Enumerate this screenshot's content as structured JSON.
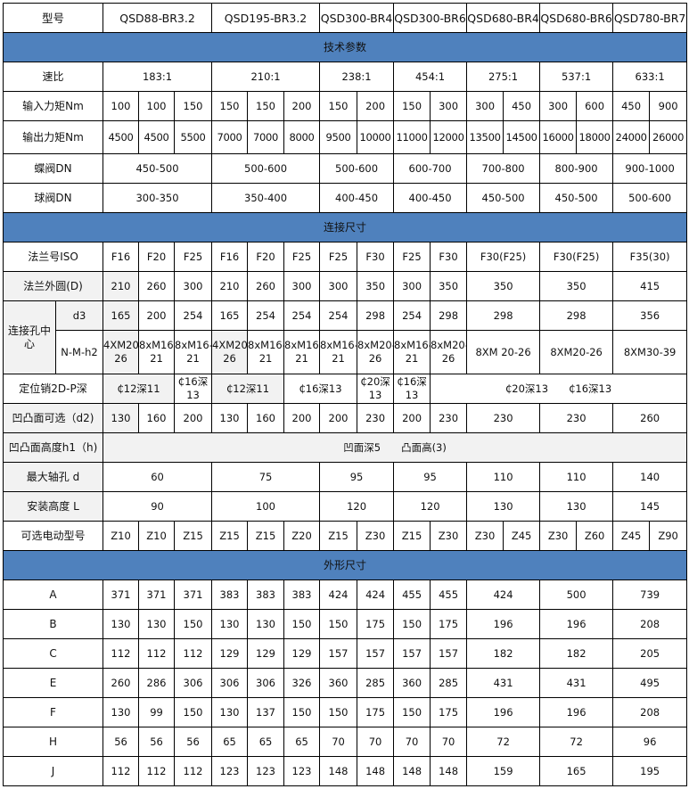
{
  "header": {
    "label": "型号",
    "models": [
      "QSD88-BR3.2",
      "QSD195-BR3.2",
      "QSD300-BR4",
      "QSD300-BR6",
      "QSD680-BR4",
      "QSD680-BR6",
      "QSD780-BR7"
    ]
  },
  "sections": {
    "tech": "技术参数",
    "connection": "连接尺寸",
    "outline": "外形尺寸"
  },
  "tech_rows": [
    {
      "label": "速比",
      "values": [
        "183:1",
        "210:1",
        "238:1",
        "454:1",
        "275:1",
        "537:1",
        "633:1"
      ]
    },
    {
      "label": "输入力矩Nm",
      "values": [
        "100",
        "100",
        "150",
        "150",
        "150",
        "200",
        "150",
        "200",
        "150",
        "300",
        "300",
        "450",
        "300",
        "600",
        "450",
        "900"
      ]
    },
    {
      "label": "输出力矩Nm",
      "values": [
        "4500",
        "4500",
        "5500",
        "7000",
        "7000",
        "8000",
        "9500",
        "10000",
        "11000",
        "12000",
        "13500",
        "14500",
        "16000",
        "18000",
        "24000",
        "26000"
      ]
    },
    {
      "label": "蝶阀DN",
      "values": [
        "450-500",
        "500-600",
        "500-600",
        "600-700",
        "700-800",
        "800-900",
        "900-1000"
      ]
    },
    {
      "label": "球阀DN",
      "values": [
        "300-350",
        "350-400",
        "400-450",
        "400-450",
        "450-500",
        "450-500",
        "500-600"
      ]
    }
  ],
  "connection_rows": {
    "flange_iso": {
      "label": "法兰号ISO",
      "values": [
        "F16",
        "F20",
        "F25",
        "F16",
        "F20",
        "F25",
        "F25",
        "F30",
        "F25",
        "F30",
        "F30(F25)",
        "F30(F25)",
        "F35(30)"
      ]
    },
    "flange_d": {
      "label": "法兰外圆(D)",
      "values": [
        "210",
        "260",
        "300",
        "210",
        "260",
        "300",
        "300",
        "350",
        "300",
        "350",
        "350",
        "350",
        "415"
      ]
    },
    "hole_center": {
      "label": "连接孔中心",
      "d3": {
        "label": "d3",
        "values": [
          "165",
          "200",
          "254",
          "165",
          "254",
          "254",
          "254",
          "298",
          "254",
          "298",
          "298",
          "298",
          "356"
        ]
      },
      "nmh2": {
        "label": "N-M-h2",
        "values": [
          "4XM20-26",
          "8xM16-21",
          "8xM16-21",
          "4XM20-26",
          "8xM16-21",
          "8xM16-21",
          "8xM16-21",
          "8xM20-26",
          "8xM16-21",
          "8xM20-26",
          "8XM 20-26",
          "8XM20-26",
          "8XM30-39"
        ]
      }
    },
    "locating_pin": {
      "label": "定位销2D-P深",
      "values": [
        "₵12深11",
        "₵16深13",
        "₵12深11",
        "₵16深13",
        "₵20深13",
        "₵16深13",
        "₵20深13　　₵16深13"
      ]
    },
    "d2": {
      "label": "凹凸面可选（d2)",
      "values": [
        "130",
        "160",
        "200",
        "130",
        "160",
        "200",
        "200",
        "230",
        "200",
        "230",
        "230",
        "230",
        "260"
      ]
    },
    "h1": {
      "label": "凹凸面高度h1（h)",
      "values": [
        "凹面深5　　凸面高(3)"
      ]
    },
    "max_bore": {
      "label": "最大轴孔 d",
      "values": [
        "60",
        "75",
        "95",
        "95",
        "110",
        "110",
        "140"
      ]
    },
    "install_height": {
      "label": "安装高度 L",
      "values": [
        "90",
        "100",
        "120",
        "120",
        "130",
        "130",
        "145"
      ]
    },
    "motor": {
      "label": "可选电动型号",
      "values": [
        "Z10",
        "Z10",
        "Z15",
        "Z15",
        "Z15",
        "Z20",
        "Z15",
        "Z30",
        "Z15",
        "Z30",
        "Z30",
        "Z45",
        "Z30",
        "Z60",
        "Z45",
        "Z90"
      ]
    }
  },
  "outline_rows": [
    {
      "label": "A",
      "values": [
        "371",
        "371",
        "371",
        "383",
        "383",
        "383",
        "424",
        "424",
        "455",
        "455",
        "424",
        "500",
        "739"
      ]
    },
    {
      "label": "B",
      "values": [
        "130",
        "130",
        "150",
        "130",
        "130",
        "150",
        "150",
        "175",
        "150",
        "175",
        "196",
        "196",
        "208"
      ]
    },
    {
      "label": "C",
      "values": [
        "112",
        "112",
        "112",
        "129",
        "129",
        "129",
        "157",
        "157",
        "157",
        "157",
        "182",
        "182",
        "205"
      ]
    },
    {
      "label": "E",
      "values": [
        "260",
        "286",
        "306",
        "306",
        "306",
        "326",
        "360",
        "285",
        "360",
        "285",
        "431",
        "431",
        "495"
      ]
    },
    {
      "label": "F",
      "values": [
        "130",
        "99",
        "150",
        "130",
        "137",
        "150",
        "150",
        "175",
        "150",
        "175",
        "196",
        "196",
        "208"
      ]
    },
    {
      "label": "H",
      "values": [
        "56",
        "56",
        "56",
        "65",
        "65",
        "65",
        "70",
        "70",
        "70",
        "70",
        "72",
        "72",
        "96"
      ]
    },
    {
      "label": "J",
      "values": [
        "112",
        "112",
        "112",
        "123",
        "123",
        "123",
        "148",
        "148",
        "148",
        "148",
        "159",
        "165",
        "195"
      ]
    }
  ],
  "colors": {
    "section_header": "#4f81bd",
    "grey_cell": "#f2f2f2",
    "border": "#000000"
  }
}
